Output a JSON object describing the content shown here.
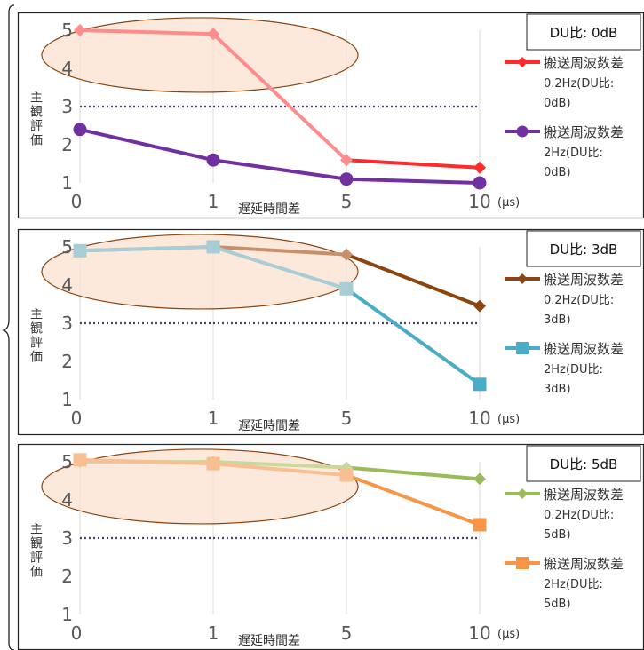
{
  "chart_data": [
    {
      "type": "line",
      "title": "DU比: 0dB",
      "xlabel": "遅延時間差",
      "x_unit_label": "(μs)",
      "ylabel": "主観評価",
      "categories": [
        "0",
        "1",
        "5",
        "10"
      ],
      "ylim": [
        1,
        5
      ],
      "yticks": [
        "1",
        "2",
        "3",
        "4",
        "5"
      ],
      "reference_line": 3,
      "legend_position": "right",
      "series": [
        {
          "name": "搬送周波数差0.2Hz(DU比:0dB)",
          "legend_lines": [
            "搬送周波数差",
            "0.2Hz(DU比:",
            "0dB)"
          ],
          "values": [
            5.0,
            4.9,
            1.6,
            1.4
          ],
          "color": "#ff2a2a",
          "faded_color": "#ff8c8c",
          "marker": "diamond"
        },
        {
          "name": "搬送周波数差2Hz(DU比:0dB)",
          "legend_lines": [
            "搬送周波数差",
            "2Hz(DU比:",
            "0dB)"
          ],
          "values": [
            2.4,
            1.6,
            1.1,
            1.0
          ],
          "color": "#7030a0",
          "faded_color": "#7030a0",
          "marker": "circle"
        }
      ]
    },
    {
      "type": "line",
      "title": "DU比: 3dB",
      "xlabel": "遅延時間差",
      "x_unit_label": "(μs)",
      "ylabel": "主観評価",
      "categories": [
        "0",
        "1",
        "5",
        "10"
      ],
      "ylim": [
        1,
        5
      ],
      "yticks": [
        "1",
        "2",
        "3",
        "4",
        "5"
      ],
      "reference_line": 3,
      "legend_position": "right",
      "series": [
        {
          "name": "搬送周波数差0.2Hz(DU比:3dB)",
          "legend_lines": [
            "搬送周波数差",
            "0.2Hz(DU比:",
            "3dB)"
          ],
          "values": [
            4.9,
            5.0,
            4.8,
            3.45
          ],
          "color": "#8b4513",
          "faded_color": "#c6916a",
          "marker": "diamond"
        },
        {
          "name": "搬送周波数差2Hz(DU比:3dB)",
          "legend_lines": [
            "搬送周波数差",
            "2Hz(DU比:",
            "3dB)"
          ],
          "values": [
            4.9,
            5.0,
            3.9,
            1.4
          ],
          "color": "#4aacc6",
          "faded_color": "#a9cdd6",
          "marker": "square"
        }
      ]
    },
    {
      "type": "line",
      "title": "DU比: 5dB",
      "xlabel": "遅延時間差",
      "x_unit_label": "(μs)",
      "ylabel": "主観評価",
      "categories": [
        "0",
        "1",
        "5",
        "10"
      ],
      "ylim": [
        1,
        5
      ],
      "yticks": [
        "1",
        "2",
        "3",
        "4",
        "5"
      ],
      "reference_line": 3,
      "legend_position": "right",
      "series": [
        {
          "name": "搬送周波数差0.2Hz(DU比:5dB)",
          "legend_lines": [
            "搬送周波数差",
            "0.2Hz(DU比:",
            "5dB)"
          ],
          "values": [
            5.0,
            5.0,
            4.85,
            4.55
          ],
          "color": "#9bbb59",
          "faded_color": "#c8d99c",
          "marker": "diamond"
        },
        {
          "name": "搬送周波数差2Hz(DU比:5dB)",
          "legend_lines": [
            "搬送周波数差",
            "2Hz(DU比:",
            "5dB)"
          ],
          "values": [
            5.05,
            4.95,
            4.65,
            3.35
          ],
          "color": "#f79646",
          "faded_color": "#f8bf93",
          "marker": "square"
        }
      ]
    }
  ],
  "colors": {
    "highlight_fill": "#fbe2d0",
    "highlight_stroke": "#8b4513",
    "reference_line": "#4b3a78",
    "grid": "#d9d9d9",
    "axis_text": "#595959"
  }
}
